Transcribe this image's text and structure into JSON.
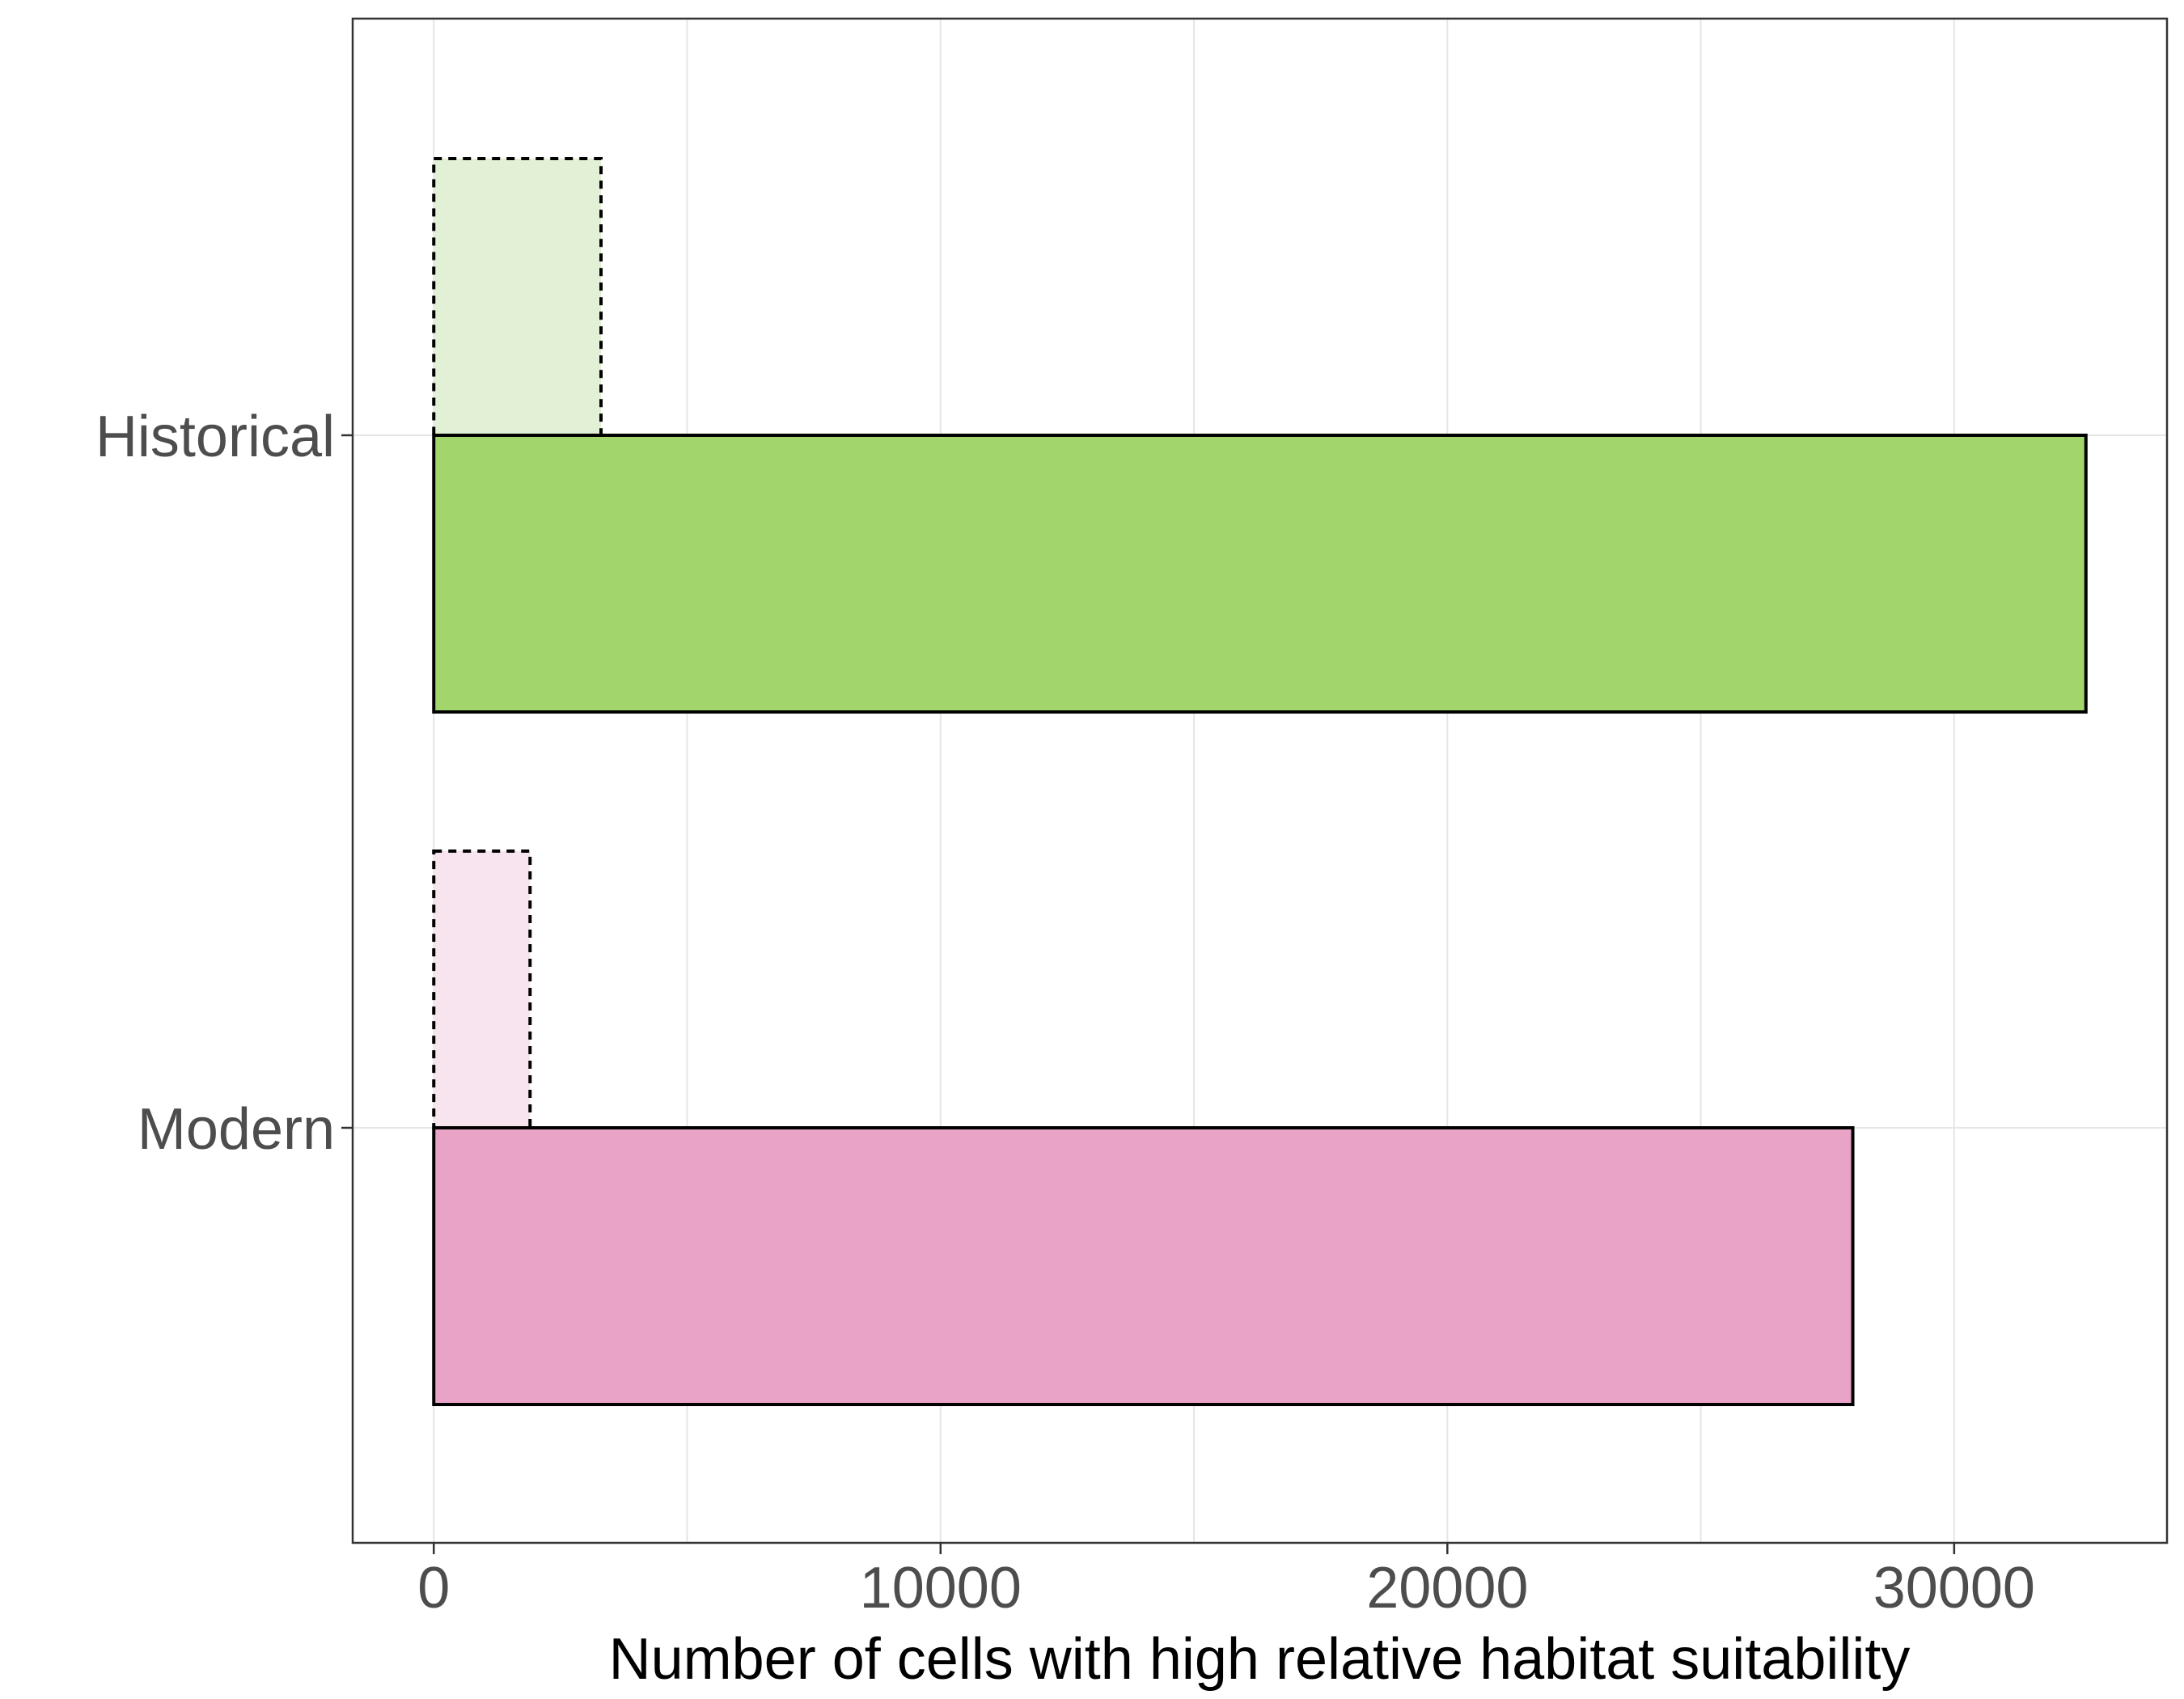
{
  "chart_data": {
    "type": "bar",
    "orientation": "horizontal",
    "title": "",
    "xlabel": "Number of cells with high relative habitat suitability",
    "ylabel": "",
    "xlim": [
      -1600,
      34200
    ],
    "xticks": [
      0,
      10000,
      20000,
      30000
    ],
    "xtick_labels": [
      "0",
      "10000",
      "20000",
      "30000"
    ],
    "grid": true,
    "legend": "none",
    "categories": [
      "Historical",
      "Modern"
    ],
    "bars": [
      {
        "category": "Historical",
        "style": "dashed-outline",
        "value": 3300,
        "fill": "#e2f1d6"
      },
      {
        "category": "Historical",
        "style": "solid-outline",
        "value": 32600,
        "fill": "#a2d66c"
      },
      {
        "category": "Modern",
        "style": "dashed-outline",
        "value": 1900,
        "fill": "#f7e4ee"
      },
      {
        "category": "Modern",
        "style": "solid-outline",
        "value": 28000,
        "fill": "#e8a3c7"
      }
    ]
  }
}
